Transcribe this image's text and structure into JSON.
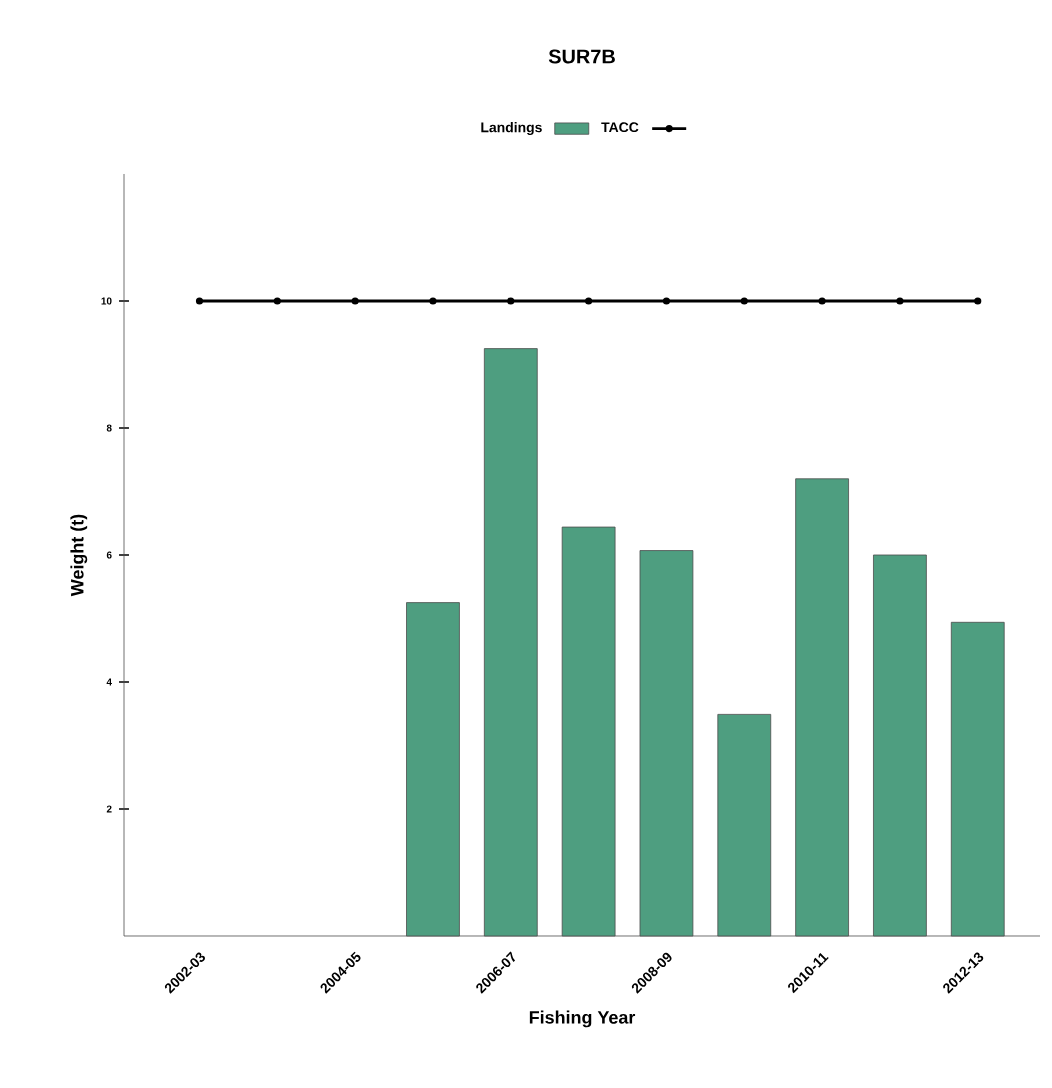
{
  "chart_data": {
    "type": "bar",
    "title": "SUR7B",
    "xlabel": "Fishing Year",
    "ylabel": "Weight (t)",
    "categories": [
      "2002-03",
      null,
      "2004-05",
      null,
      "2006-07",
      null,
      "2008-09",
      null,
      "2010-11",
      null,
      "2012-13"
    ],
    "series": [
      {
        "name": "Landings",
        "color": "#4e9e80",
        "values": [
          null,
          null,
          null,
          5.25,
          9.25,
          6.44,
          6.07,
          3.49,
          7.2,
          6.0,
          4.94
        ]
      },
      {
        "name": "TACC",
        "type": "line",
        "color": "#000000",
        "marker": "circle",
        "values": [
          10,
          10,
          10,
          10,
          10,
          10,
          10,
          10,
          10,
          10,
          10
        ]
      }
    ],
    "ylim": [
      0,
      12
    ],
    "yticks": [
      2,
      4,
      6,
      8,
      10
    ],
    "legend": "top",
    "grid": false
  }
}
